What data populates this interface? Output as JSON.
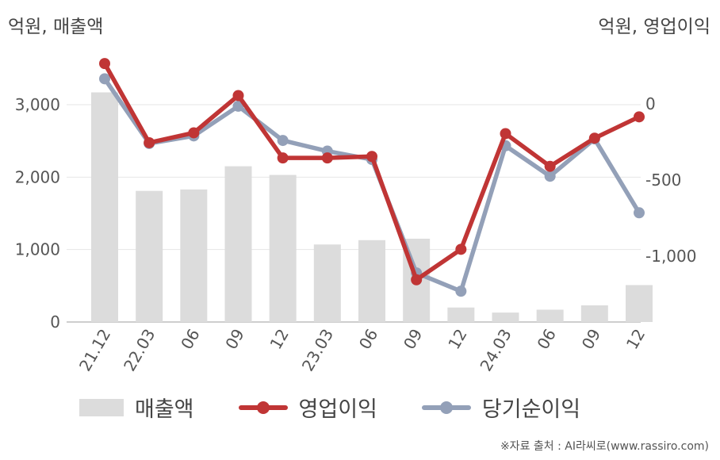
{
  "units": {
    "left": "억원, 매출액",
    "right": "억원, 영업이익"
  },
  "chart_data": {
    "type": "bar+line",
    "categories": [
      "21.12",
      "22.03",
      "06",
      "09",
      "12",
      "23.03",
      "06",
      "09",
      "12",
      "24.03",
      "06",
      "09",
      "12"
    ],
    "left_axis": {
      "ylim": [
        0,
        3500
      ],
      "ticks": [
        0,
        1000,
        2000,
        3000
      ],
      "tick_labels": [
        "0",
        "1,000",
        "2,000",
        "3,000"
      ]
    },
    "right_axis": {
      "ylim": [
        -1420,
        330
      ],
      "ticks": [
        0,
        -500,
        -1000
      ],
      "tick_labels": [
        "0",
        "-500",
        "-1,000"
      ]
    },
    "series": [
      {
        "name": "매출액",
        "type": "bar",
        "axis": "left",
        "color": "#dcdcdc",
        "values": [
          3170,
          1810,
          1830,
          2150,
          2030,
          1070,
          1130,
          1150,
          200,
          130,
          170,
          230,
          510
        ]
      },
      {
        "name": "영업이익",
        "type": "line",
        "axis": "right",
        "color": "#c03535",
        "values": [
          265,
          -255,
          -190,
          55,
          -355,
          -355,
          -345,
          -1155,
          -955,
          -195,
          -410,
          -225,
          -85
        ]
      },
      {
        "name": "당기순이익",
        "type": "line",
        "axis": "right",
        "color": "#93a0b8",
        "values": [
          165,
          -260,
          -210,
          -15,
          -240,
          -310,
          -365,
          -1110,
          -1230,
          -275,
          -475,
          -230,
          -715
        ]
      }
    ],
    "grid": true,
    "legend_position": "bottom"
  },
  "source": "※자료 출처 : AI라씨로(www.rassiro.com)"
}
